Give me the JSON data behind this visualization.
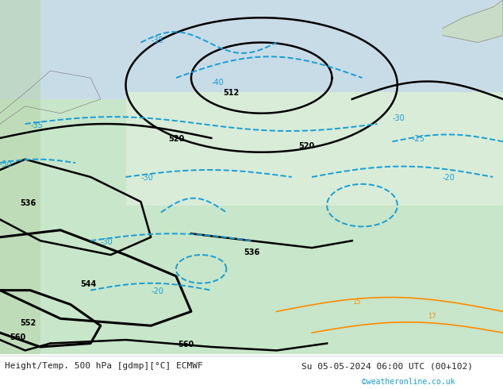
{
  "title_left": "Height/Temp. 500 hPa [gdmp][°C] ECMWF",
  "title_right": "Su 05-05-2024 06:00 UTC (00+102)",
  "credit": "©weatheronline.co.uk",
  "bg_color": "#f0f0f0",
  "map_bg": "#c8e6c9",
  "sea_color": "#d0e8f0",
  "footer_bg": "#ffffff",
  "contour_color_z500": "#000000",
  "contour_color_temp": "#1a9ed4",
  "contour_color_z850": "#ff8c00",
  "label_fontsize": 7,
  "footer_fontsize": 8,
  "credit_fontsize": 7,
  "credit_color": "#1a9ed4"
}
